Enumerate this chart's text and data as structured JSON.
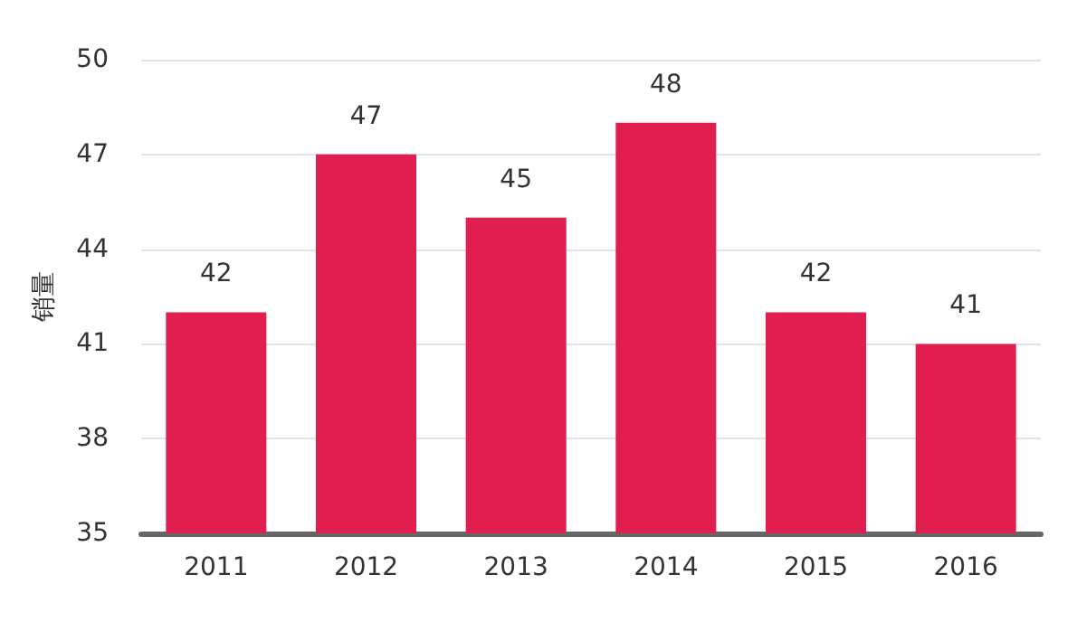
{
  "chart_data": {
    "type": "bar",
    "ylabel": "销量",
    "categories": [
      "2011",
      "2012",
      "2013",
      "2014",
      "2015",
      "2016"
    ],
    "values": [
      42,
      47,
      45,
      48,
      42,
      41
    ],
    "color": "#e01f50",
    "ylim": [
      35,
      50
    ],
    "yticks": [
      35,
      38,
      41,
      44,
      47,
      50
    ],
    "grid": "y",
    "data_labels": true
  }
}
